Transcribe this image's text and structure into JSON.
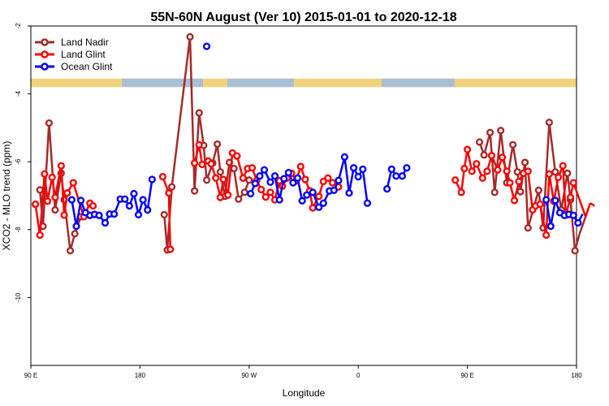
{
  "chart_data": {
    "type": "line",
    "title": "55N-60N August (Ver 10)   2015-01-01 to 2020-12-18",
    "xlabel": "Longitude",
    "ylabel": "XCO2 - MLO trend (ppm)",
    "xlim": [
      90,
      450
    ],
    "ylim": [
      -12,
      -2
    ],
    "x_tick_values": [
      90,
      162,
      234,
      306,
      378,
      450
    ],
    "x_tick_labels": [
      "90 E",
      "180",
      "90 W",
      "0",
      "90 E",
      "180"
    ],
    "y_tick_values": [
      -2,
      -4,
      -6,
      -8,
      -10
    ],
    "y_tick_labels": [
      "-2",
      "-4",
      "-6",
      "-8",
      "-10"
    ],
    "grid": false,
    "legend_position": "top-left",
    "land_mask_band": {
      "y_top": -3.55,
      "y_bottom": -3.8,
      "land_color": "#f2d27a",
      "ocean_color": "#a9bfd6"
    },
    "series": [
      {
        "name": "Land Nadir",
        "color": "#a52a2a",
        "points": [
          [
            96,
            -6.83
          ],
          [
            98,
            -7.9
          ],
          [
            102,
            -4.86
          ],
          [
            106,
            -7.42
          ],
          [
            110,
            -6.34
          ],
          [
            112,
            -7.12
          ],
          [
            116,
            -8.62
          ],
          [
            119,
            -8.12
          ],
          [
            123,
            -7.62
          ],
          [
            178,
            -7.56
          ],
          [
            180,
            -8.6
          ],
          [
            183,
            -6.74
          ],
          [
            195,
            -2.32
          ],
          [
            198,
            -6.86
          ],
          [
            201,
            -4.56
          ],
          [
            204,
            -5.52
          ],
          [
            206,
            -6.54
          ],
          [
            210,
            -6.04
          ],
          [
            213,
            -5.48
          ],
          [
            215,
            -6.3
          ],
          [
            218,
            -7.02
          ],
          [
            221,
            -6.02
          ],
          [
            224,
            -6.2
          ],
          [
            227,
            -7.1
          ],
          [
            231,
            -6.9
          ],
          [
            234,
            -6.54
          ],
          [
            386,
            -5.42
          ],
          [
            389,
            -5.8
          ],
          [
            393,
            -5.14
          ],
          [
            396,
            -6.9
          ],
          [
            400,
            -5.08
          ],
          [
            404,
            -6.62
          ],
          [
            408,
            -5.5
          ],
          [
            411,
            -6.3
          ],
          [
            413,
            -6.88
          ],
          [
            416,
            -6.02
          ],
          [
            418,
            -7.95
          ],
          [
            425,
            -6.84
          ],
          [
            428,
            -7.95
          ],
          [
            432,
            -4.84
          ],
          [
            436,
            -6.3
          ],
          [
            440,
            -7.42
          ],
          [
            444,
            -6.34
          ],
          [
            446,
            -7.12
          ],
          [
            449,
            -8.62
          ],
          [
            452,
            -8.12
          ],
          [
            456,
            -7.62
          ]
        ]
      },
      {
        "name": "Land Glint",
        "color": "#ff0000",
        "points": [
          [
            93,
            -7.25
          ],
          [
            96,
            -8.16
          ],
          [
            99,
            -6.36
          ],
          [
            101,
            -7.16
          ],
          [
            104,
            -6.46
          ],
          [
            106,
            -7.05
          ],
          [
            110,
            -6.12
          ],
          [
            112,
            -7.57
          ],
          [
            114,
            -6.92
          ],
          [
            118,
            -6.62
          ],
          [
            125,
            -7.62
          ],
          [
            129,
            -7.22
          ],
          [
            131,
            -7.3
          ],
          [
            177,
            -6.44
          ],
          [
            181,
            -6.92
          ],
          [
            182,
            -8.58
          ],
          [
            198,
            -6.04
          ],
          [
            201,
            -5.5
          ],
          [
            203,
            -6.08
          ],
          [
            207,
            -5.98
          ],
          [
            209,
            -6.06
          ],
          [
            212,
            -6.48
          ],
          [
            215,
            -7.05
          ],
          [
            217,
            -6.52
          ],
          [
            220,
            -6.98
          ],
          [
            223,
            -5.74
          ],
          [
            226,
            -5.83
          ],
          [
            230,
            -6.48
          ],
          [
            233,
            -6.2
          ],
          [
            236,
            -6.18
          ],
          [
            239,
            -6.55
          ],
          [
            242,
            -6.82
          ],
          [
            245,
            -7.04
          ],
          [
            248,
            -6.9
          ],
          [
            251,
            -7.12
          ],
          [
            254,
            -6.56
          ],
          [
            256,
            -6.72
          ],
          [
            259,
            -6.48
          ],
          [
            262,
            -6.34
          ],
          [
            265,
            -6.56
          ],
          [
            268,
            -6.14
          ],
          [
            271,
            -6.52
          ],
          [
            274,
            -6.86
          ],
          [
            276,
            -7.36
          ],
          [
            280,
            -7.02
          ],
          [
            283,
            -6.58
          ],
          [
            286,
            -6.48
          ],
          [
            289,
            -6.62
          ],
          [
            293,
            -6.74
          ],
          [
            370,
            -6.54
          ],
          [
            374,
            -6.9
          ],
          [
            376,
            -6.2
          ],
          [
            378,
            -5.64
          ],
          [
            381,
            -6.28
          ],
          [
            384,
            -6.06
          ],
          [
            388,
            -6.48
          ],
          [
            391,
            -6.28
          ],
          [
            394,
            -5.82
          ],
          [
            398,
            -6.24
          ],
          [
            401,
            -5.87
          ],
          [
            404,
            -6.28
          ],
          [
            406,
            -6.62
          ],
          [
            409,
            -7.14
          ],
          [
            412,
            -6.58
          ],
          [
            415,
            -6.34
          ],
          [
            418,
            -6.28
          ],
          [
            421,
            -7.42
          ],
          [
            423,
            -7.3
          ],
          [
            426,
            -7.25
          ],
          [
            430,
            -8.16
          ],
          [
            432,
            -6.36
          ],
          [
            435,
            -7.16
          ],
          [
            438,
            -6.46
          ],
          [
            441,
            -6.12
          ],
          [
            443,
            -7.57
          ],
          [
            446,
            -7.05
          ],
          [
            448,
            -6.62
          ],
          [
            456,
            -7.62
          ],
          [
            459,
            -7.22
          ],
          [
            462,
            -7.3
          ]
        ]
      },
      {
        "name": "Ocean Glint",
        "color": "#0000ff",
        "points": [
          [
            117,
            -7.12
          ],
          [
            120,
            -7.9
          ],
          [
            123,
            -7.14
          ],
          [
            126,
            -7.5
          ],
          [
            129,
            -7.58
          ],
          [
            132,
            -7.55
          ],
          [
            135,
            -7.58
          ],
          [
            139,
            -7.8
          ],
          [
            142,
            -7.54
          ],
          [
            145,
            -7.54
          ],
          [
            149,
            -7.1
          ],
          [
            152,
            -7.1
          ],
          [
            155,
            -7.3
          ],
          [
            158,
            -6.94
          ],
          [
            161,
            -7.56
          ],
          [
            164,
            -7.12
          ],
          [
            167,
            -7.42
          ],
          [
            170,
            -6.52
          ],
          [
            206,
            -2.6
          ],
          [
            235,
            -6.94
          ],
          [
            238,
            -6.64
          ],
          [
            241,
            -6.42
          ],
          [
            244,
            -6.24
          ],
          [
            248,
            -6.6
          ],
          [
            251,
            -6.42
          ],
          [
            254,
            -7.12
          ],
          [
            257,
            -6.5
          ],
          [
            260,
            -6.32
          ],
          [
            263,
            -6.62
          ],
          [
            266,
            -6.48
          ],
          [
            269,
            -7.15
          ],
          [
            272,
            -6.98
          ],
          [
            276,
            -6.9
          ],
          [
            280,
            -7.34
          ],
          [
            283,
            -7.22
          ],
          [
            287,
            -6.86
          ],
          [
            290,
            -6.84
          ],
          [
            293,
            -6.55
          ],
          [
            297,
            -5.86
          ],
          [
            300,
            -6.92
          ],
          [
            303,
            -6.18
          ],
          [
            306,
            -6.44
          ],
          [
            309,
            -6.22
          ],
          [
            312,
            -7.22
          ],
          [
            325,
            -6.8
          ],
          [
            328,
            -6.22
          ],
          [
            331,
            -6.42
          ],
          [
            335,
            -6.42
          ],
          [
            338,
            -6.18
          ],
          [
            430,
            -7.12
          ],
          [
            433,
            -7.9
          ],
          [
            436,
            -7.14
          ],
          [
            439,
            -7.5
          ],
          [
            442,
            -7.58
          ],
          [
            445,
            -7.55
          ],
          [
            448,
            -7.58
          ],
          [
            451,
            -7.8
          ],
          [
            454,
            -7.54
          ]
        ]
      }
    ]
  }
}
